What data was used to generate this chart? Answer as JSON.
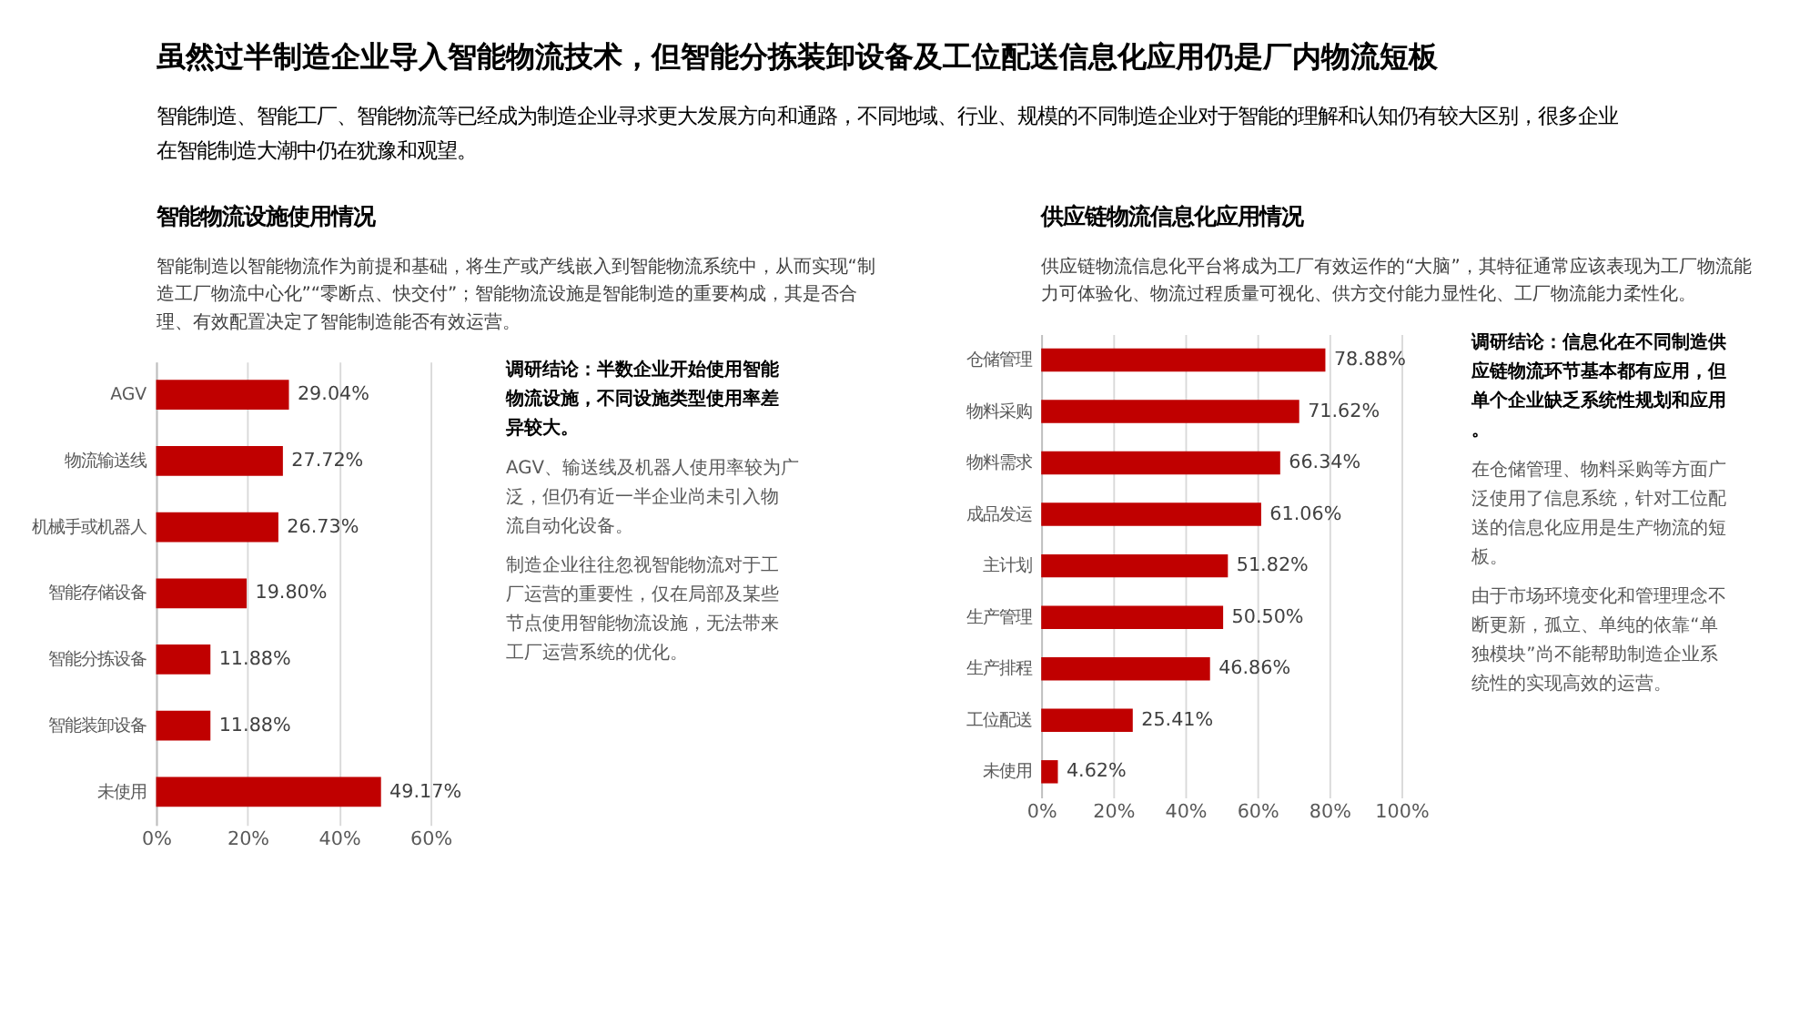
{
  "chart_data": [
    {
      "type": "other",
      "title": "虽然过半制造企业导入智能物流技术，但智能分拣装卸设备及工位配送信息化应用仍是厂内物流短板",
      "subtitle": "智能制造、智能工厂、智能物流等已经成为制造企业寻求更大发展方向和通路，不同地域、行业、规模的不同制造企业对于智能的理解和认知仍有较大区别，很多企业在智能制造大潮中仍在犹豫和观望。"
    },
    {
      "type": "bar",
      "orientation": "horizontal",
      "title": "智能物流设施使用情况",
      "subtitle": "智能制造以智能物流作为前提和基础，将生产或产线嵌入到智能物流系统中，从而实现“制造工厂物流中心化”“零断点、快交付”；智能物流设施是智能制造的重要构成，其是否合理、有效配置决定了智能制造能否有效运营。",
      "categories": [
        "AGV",
        "物流输送线",
        "机械手或机器人",
        "智能存储设备",
        "智能分拣设备",
        "智能装卸设备",
        "未使用"
      ],
      "values": [
        29.04,
        27.72,
        26.73,
        19.8,
        11.88,
        11.88,
        49.17
      ],
      "value_labels": [
        "29.04%",
        "27.72%",
        "26.73%",
        "19.80%",
        "11.88%",
        "11.88%",
        "49.17%"
      ],
      "color": "#c00000",
      "xlim": [
        0,
        60
      ],
      "xticks": [
        {
          "value": 0,
          "label": "0%"
        },
        {
          "value": 20,
          "label": "20%"
        },
        {
          "value": 40,
          "label": "40%"
        },
        {
          "value": 60,
          "label": "60%"
        }
      ],
      "grid": "x",
      "annotations": [
        "调研结论：半数企业开始使用智能物流设施，不同设施类型使用率差异较大。",
        "AGV、输送线及机器人使用率较为广泛，但仍有近一半企业尚未引入物流自动化设备。",
        "制造企业往往忽视智能物流对于工厂运营的重要性，仅在局部及某些节点使用智能物流设施，无法带来工厂运营系统的优化。"
      ]
    },
    {
      "type": "bar",
      "orientation": "horizontal",
      "title": "供应链物流信息化应用情况",
      "subtitle": "供应链物流信息化平台将成为工厂有效运作的“大脑”，其特征通常应该表现为工厂物流能力可体验化、物流过程质量可视化、供方交付能力显性化、工厂物流能力柔性化。",
      "categories": [
        "仓储管理",
        "物料采购",
        "物料需求",
        "成品发运",
        "主计划",
        "生产管理",
        "生产排程",
        "工位配送",
        "未使用"
      ],
      "values": [
        78.88,
        71.62,
        66.34,
        61.06,
        51.82,
        50.5,
        46.86,
        25.41,
        4.62
      ],
      "value_labels": [
        "78.88%",
        "71.62%",
        "66.34%",
        "61.06%",
        "51.82%",
        "50.50%",
        "46.86%",
        "25.41%",
        "4.62%"
      ],
      "color": "#c00000",
      "xlim": [
        0,
        100
      ],
      "xticks": [
        {
          "value": 0,
          "label": "0%"
        },
        {
          "value": 20,
          "label": "20%"
        },
        {
          "value": 40,
          "label": "40%"
        },
        {
          "value": 60,
          "label": "60%"
        },
        {
          "value": 80,
          "label": "80%"
        },
        {
          "value": 100,
          "label": "100%"
        }
      ],
      "grid": "x",
      "annotations": [
        "调研结论：信息化在不同制造供应链物流环节基本都有应用，但单个企业缺乏系统性规划和应用。",
        "在仓储管理、物料采购等方面广泛使用了信息系统，针对工位配送的信息化应用是生产物流的短板。",
        "由于市场环境变化和管理理念不断更新，孤立、单纯的依靠“单独模块”尚不能帮助制造企业系统性的实现高效的运营。"
      ]
    }
  ]
}
